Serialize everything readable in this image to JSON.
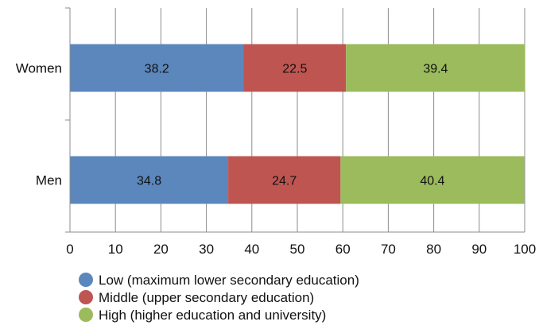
{
  "chart_data": {
    "type": "bar",
    "orientation": "horizontal",
    "stacked": true,
    "title": "",
    "xlabel": "",
    "ylabel": "",
    "categories": [
      "Women",
      "Men"
    ],
    "xlim": [
      0,
      100
    ],
    "xticks": [
      "0",
      "10",
      "20",
      "30",
      "40",
      "50",
      "60",
      "70",
      "80",
      "90",
      "100"
    ],
    "grid": true,
    "legend_position": "bottom",
    "series": [
      {
        "name": "Low (maximum lower secondary education)",
        "color": "#5b87bd",
        "values": [
          38.2,
          34.8
        ]
      },
      {
        "name": "Middle (upper secondary education)",
        "color": "#bf5551",
        "values": [
          22.5,
          24.7
        ]
      },
      {
        "name": "High (higher education and university)",
        "color": "#9bbb5c",
        "values": [
          39.4,
          40.4
        ]
      }
    ]
  }
}
